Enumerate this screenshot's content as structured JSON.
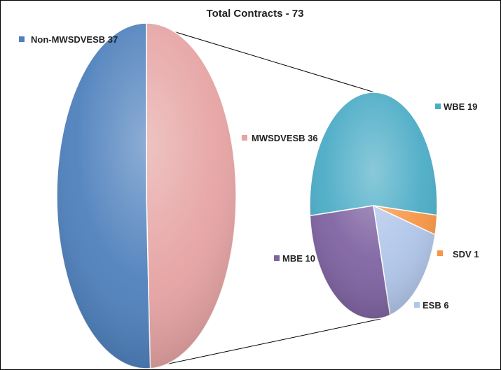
{
  "chart_data": {
    "type": "pie",
    "title": "Total Contracts - 73",
    "subtype": "pie-of-pie",
    "main_pie": [
      {
        "label": "Non-MWSDVESB",
        "value": 37,
        "color": "#4F81BD"
      },
      {
        "label": "MWSDVESB",
        "value": 36,
        "color": "#E6A3A3"
      }
    ],
    "secondary_pie": [
      {
        "label": "WBE",
        "value": 19,
        "color": "#4BACC6"
      },
      {
        "label": "SDV",
        "value": 1,
        "color": "#F79646"
      },
      {
        "label": "ESB",
        "value": 6,
        "color": "#B1C6EA"
      },
      {
        "label": "MBE",
        "value": 10,
        "color": "#8064A2"
      }
    ],
    "legend": [
      {
        "text": "Non-MWSDVESB 37",
        "color": "#4F81BD"
      },
      {
        "text": "MWSDVESB 36",
        "color": "#E6A3A3"
      },
      {
        "text": "WBE 19",
        "color": "#4BACC6"
      },
      {
        "text": "SDV 1",
        "color": "#F79646"
      },
      {
        "text": "MBE 10",
        "color": "#8064A2"
      },
      {
        "text": "ESB 6",
        "color": "#B1C6EA"
      }
    ]
  }
}
